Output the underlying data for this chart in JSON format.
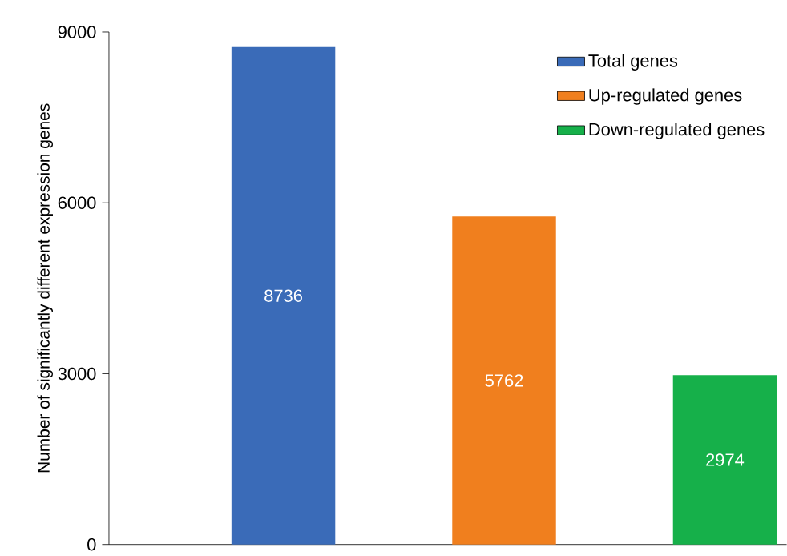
{
  "chart_data": {
    "type": "bar",
    "ylabel": "Number of significantly different expression genes",
    "categories": [
      null,
      null,
      null
    ],
    "series": [
      {
        "name": "Total genes",
        "color": "#3a6bb8",
        "values": [
          8736,
          null,
          null
        ]
      },
      {
        "name": "Up-regulated genes",
        "color": "#f07f1e",
        "values": [
          null,
          5762,
          null
        ]
      },
      {
        "name": "Down-regulated genes",
        "color": "#16b04a",
        "values": [
          null,
          null,
          2974
        ]
      }
    ],
    "ylim": [
      0,
      9000
    ],
    "yticks": [
      0,
      3000,
      6000,
      9000
    ],
    "data_labels": true,
    "legend": "top right",
    "grid": false
  }
}
